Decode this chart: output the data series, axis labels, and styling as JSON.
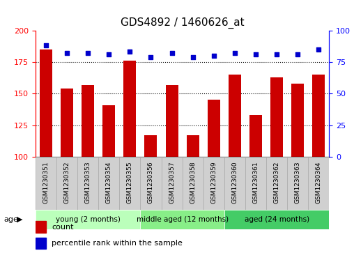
{
  "title": "GDS4892 / 1460626_at",
  "categories": [
    "GSM1230351",
    "GSM1230352",
    "GSM1230353",
    "GSM1230354",
    "GSM1230355",
    "GSM1230356",
    "GSM1230357",
    "GSM1230358",
    "GSM1230359",
    "GSM1230360",
    "GSM1230361",
    "GSM1230362",
    "GSM1230363",
    "GSM1230364"
  ],
  "counts": [
    185,
    154,
    157,
    141,
    176,
    117,
    157,
    117,
    145,
    165,
    133,
    163,
    158,
    165
  ],
  "percentile_ranks": [
    88,
    82,
    82,
    81,
    83,
    79,
    82,
    79,
    80,
    82,
    81,
    81,
    81,
    85
  ],
  "ylim_left": [
    100,
    200
  ],
  "ylim_right": [
    0,
    100
  ],
  "yticks_left": [
    100,
    125,
    150,
    175,
    200
  ],
  "yticks_right": [
    0,
    25,
    50,
    75,
    100
  ],
  "bar_color": "#cc0000",
  "dot_color": "#0000cc",
  "groups": [
    {
      "label": "young (2 months)",
      "start": 0,
      "end": 5,
      "color": "#bbffbb"
    },
    {
      "label": "middle aged (12 months)",
      "start": 5,
      "end": 9,
      "color": "#88ee88"
    },
    {
      "label": "aged (24 months)",
      "start": 9,
      "end": 14,
      "color": "#44cc66"
    }
  ],
  "age_label": "age",
  "legend_count_label": "count",
  "legend_percentile_label": "percentile rank within the sample",
  "title_fontsize": 11,
  "tick_fontsize": 8,
  "label_fontsize": 6.5,
  "group_fontsize": 7.5,
  "legend_fontsize": 8
}
